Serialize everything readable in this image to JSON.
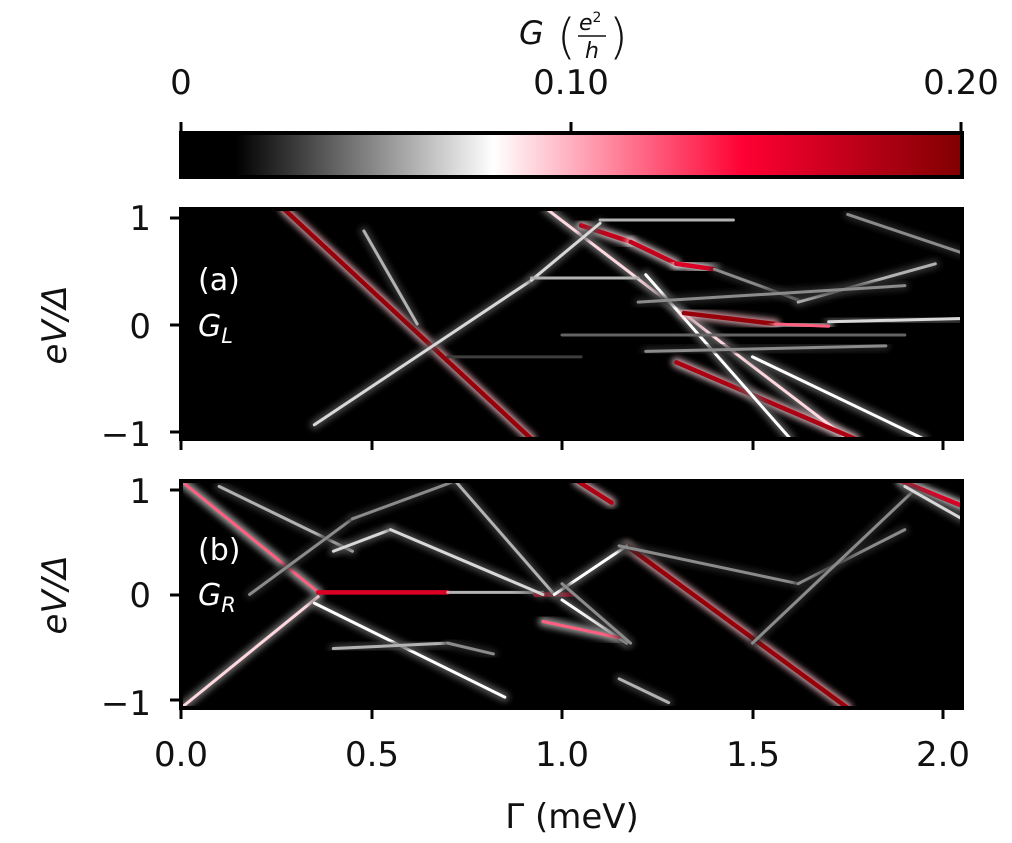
{
  "chart_data": {
    "type": "heatmap",
    "colorbar": {
      "title_symbol": "G",
      "title_unit_num": "e",
      "title_unit_sup": "2",
      "title_unit_den": "h",
      "range": [
        0,
        0.2
      ],
      "ticks": [
        0,
        0.1,
        0.2
      ],
      "tick_labels": [
        "0",
        "0.10",
        "0.20"
      ],
      "colormap": [
        "#000000",
        "#ffffff",
        "#ff0033",
        "#800000"
      ]
    },
    "x": {
      "label": "Γ (meV)",
      "range": [
        0,
        2.05
      ],
      "ticks": [
        0,
        0.5,
        1,
        1.5,
        2
      ],
      "tick_labels": [
        "0.0",
        "0.5",
        "1.0",
        "1.5",
        "2.0"
      ]
    },
    "y": {
      "label": "eV/Δ",
      "range": [
        -1.05,
        1.05
      ],
      "ticks": [
        -1,
        0,
        1
      ],
      "tick_labels": [
        "−1",
        "0",
        "1"
      ]
    },
    "panels": [
      {
        "id": "a",
        "label": "(a)",
        "quantity": "G",
        "quantity_sub": "L",
        "features": [
          {
            "x": [
              0.27,
              0.92
            ],
            "y": [
              1.05,
              -1.05
            ],
            "peak": 0.19
          },
          {
            "x": [
              0.96,
              1.75
            ],
            "y": [
              1.05,
              -1.05
            ],
            "peak": 0.09
          },
          {
            "x": [
              1.3,
              1.77
            ],
            "y": [
              -0.35,
              -1.05
            ],
            "peak": 0.18
          },
          {
            "x": [
              1.22,
              1.6
            ],
            "y": [
              0.45,
              -1.05
            ],
            "peak": 0.08
          },
          {
            "x": [
              1.5,
              1.95
            ],
            "y": [
              -0.3,
              -1.05
            ],
            "peak": 0.08
          },
          {
            "x": [
              1.05,
              1.18
            ],
            "y": [
              0.9,
              0.75
            ],
            "peak": 0.17
          },
          {
            "x": [
              1.18,
              1.3
            ],
            "y": [
              0.75,
              0.55
            ],
            "peak": 0.17
          },
          {
            "x": [
              1.3,
              1.4
            ],
            "y": [
              0.55,
              0.5
            ],
            "peak": 0.16
          },
          {
            "x": [
              1.32,
              1.56
            ],
            "y": [
              0.1,
              0.0
            ],
            "peak": 0.19
          },
          {
            "x": [
              1.56,
              1.7
            ],
            "y": [
              0.0,
              -0.02
            ],
            "peak": 0.12
          },
          {
            "x": [
              0.35,
              0.92
            ],
            "y": [
              -0.92,
              0.4
            ],
            "peak": 0.07
          },
          {
            "x": [
              0.48,
              0.62
            ],
            "y": [
              0.85,
              0.0
            ],
            "peak": 0.06
          },
          {
            "x": [
              0.92,
              1.1
            ],
            "y": [
              0.4,
              0.92
            ],
            "peak": 0.07
          },
          {
            "x": [
              0.92,
              1.2
            ],
            "y": [
              0.42,
              0.42
            ],
            "peak": 0.06
          },
          {
            "x": [
              1.1,
              1.45
            ],
            "y": [
              0.95,
              0.95
            ],
            "peak": 0.06
          },
          {
            "x": [
              1.4,
              1.62
            ],
            "y": [
              0.5,
              0.22
            ],
            "peak": 0.05
          },
          {
            "x": [
              1.62,
              1.98
            ],
            "y": [
              0.2,
              0.55
            ],
            "peak": 0.06
          },
          {
            "x": [
              1.7,
              2.05
            ],
            "y": [
              0.02,
              0.05
            ],
            "peak": 0.07
          },
          {
            "x": [
              1.75,
              2.05
            ],
            "y": [
              1.0,
              0.65
            ],
            "peak": 0.05
          },
          {
            "x": [
              1.2,
              1.9
            ],
            "y": [
              0.2,
              0.35
            ],
            "peak": 0.05
          },
          {
            "x": [
              1.22,
              1.85
            ],
            "y": [
              -0.25,
              -0.2
            ],
            "peak": 0.05
          },
          {
            "x": [
              1.0,
              1.9
            ],
            "y": [
              -0.1,
              -0.1
            ],
            "peak": 0.04
          },
          {
            "x": [
              0.7,
              1.05
            ],
            "y": [
              -0.3,
              -0.3
            ],
            "peak": 0.03
          }
        ]
      },
      {
        "id": "b",
        "label": "(b)",
        "quantity": "G",
        "quantity_sub": "R",
        "features": [
          {
            "x": [
              1.17,
              1.75
            ],
            "y": [
              0.45,
              -1.05
            ],
            "peak": 0.19
          },
          {
            "x": [
              1.04,
              1.13
            ],
            "y": [
              1.05,
              0.85
            ],
            "peak": 0.18
          },
          {
            "x": [
              1.89,
              2.05
            ],
            "y": [
              1.05,
              0.82
            ],
            "peak": 0.16
          },
          {
            "x": [
              0.0,
              0.36
            ],
            "y": [
              1.05,
              0.02
            ],
            "peak": 0.12
          },
          {
            "x": [
              0.36,
              0.0
            ],
            "y": [
              -0.02,
              -1.05
            ],
            "peak": 0.09
          },
          {
            "x": [
              0.36,
              0.7
            ],
            "y": [
              0.02,
              0.02
            ],
            "peak": 0.16
          },
          {
            "x": [
              0.7,
              0.95
            ],
            "y": [
              0.02,
              0.02
            ],
            "peak": 0.06
          },
          {
            "x": [
              0.93,
              1.03
            ],
            "y": [
              0.0,
              0.0
            ],
            "peak": 0.16
          },
          {
            "x": [
              0.35,
              0.85
            ],
            "y": [
              -0.08,
              -0.95
            ],
            "peak": 0.08
          },
          {
            "x": [
              0.1,
              0.45
            ],
            "y": [
              1.0,
              0.4
            ],
            "peak": 0.06
          },
          {
            "x": [
              0.4,
              0.55
            ],
            "y": [
              0.4,
              0.6
            ],
            "peak": 0.07
          },
          {
            "x": [
              0.55,
              0.95
            ],
            "y": [
              0.6,
              0.0
            ],
            "peak": 0.07
          },
          {
            "x": [
              0.4,
              0.7
            ],
            "y": [
              -0.5,
              -0.45
            ],
            "peak": 0.06
          },
          {
            "x": [
              0.7,
              0.82
            ],
            "y": [
              -0.45,
              -0.55
            ],
            "peak": 0.05
          },
          {
            "x": [
              0.18,
              0.45
            ],
            "y": [
              0.0,
              0.7
            ],
            "peak": 0.05
          },
          {
            "x": [
              0.45,
              0.72
            ],
            "y": [
              0.7,
              1.05
            ],
            "peak": 0.05
          },
          {
            "x": [
              0.72,
              0.98
            ],
            "y": [
              1.05,
              0.0
            ],
            "peak": 0.06
          },
          {
            "x": [
              0.98,
              1.17
            ],
            "y": [
              0.0,
              0.45
            ],
            "peak": 0.08
          },
          {
            "x": [
              1.0,
              1.17
            ],
            "y": [
              -0.05,
              -0.45
            ],
            "peak": 0.08
          },
          {
            "x": [
              0.95,
              1.15
            ],
            "y": [
              -0.25,
              -0.4
            ],
            "peak": 0.12
          },
          {
            "x": [
              1.0,
              1.18
            ],
            "y": [
              0.1,
              -0.45
            ],
            "peak": 0.05
          },
          {
            "x": [
              1.15,
              1.62
            ],
            "y": [
              0.45,
              0.1
            ],
            "peak": 0.05
          },
          {
            "x": [
              1.62,
              1.9
            ],
            "y": [
              0.1,
              0.6
            ],
            "peak": 0.05
          },
          {
            "x": [
              1.5,
              1.92
            ],
            "y": [
              -0.45,
              0.95
            ],
            "peak": 0.05
          },
          {
            "x": [
              1.15,
              1.28
            ],
            "y": [
              -0.78,
              -1.0
            ],
            "peak": 0.06
          },
          {
            "x": [
              1.9,
              2.05
            ],
            "y": [
              1.0,
              0.7
            ],
            "peak": 0.07
          }
        ]
      }
    ]
  }
}
